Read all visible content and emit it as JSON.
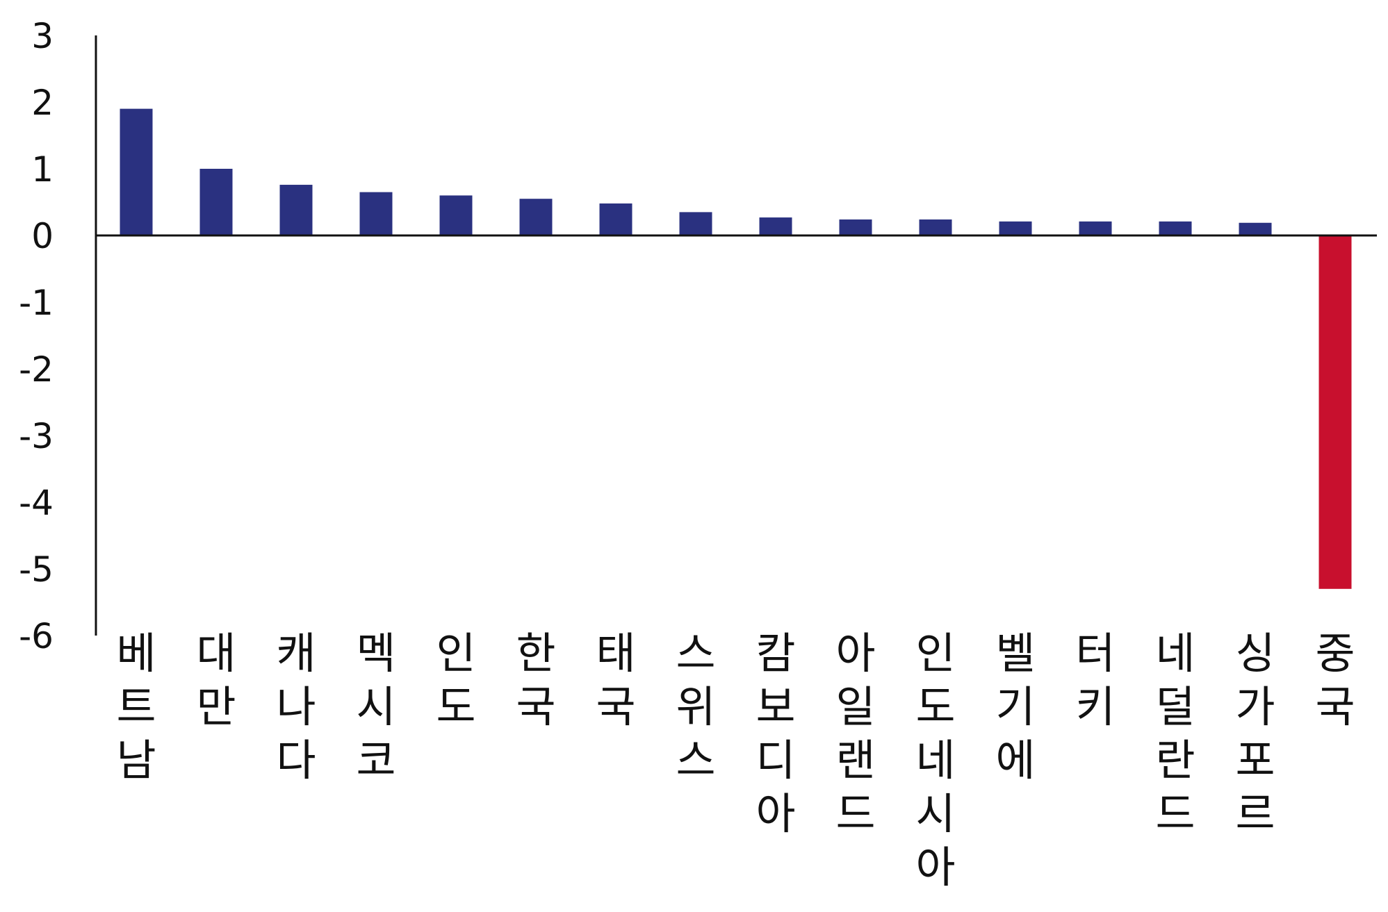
{
  "chart_data": {
    "type": "bar",
    "title": "",
    "xlabel": "",
    "ylabel": "",
    "ylim": [
      -6,
      3
    ],
    "yticks": [
      "3",
      "2",
      "1",
      "0",
      "-1",
      "-2",
      "-3",
      "-4",
      "-5",
      "-6"
    ],
    "grid": false,
    "categories": [
      "베트남",
      "대만",
      "캐나다",
      "멕시코",
      "인도",
      "한국",
      "태국",
      "스위스",
      "캄보디아",
      "아일랜드",
      "인도네시아",
      "벨기에",
      "터키",
      "네덜란드",
      "싱가포르",
      "중국"
    ],
    "values": [
      1.9,
      1.0,
      0.76,
      0.65,
      0.6,
      0.55,
      0.48,
      0.35,
      0.27,
      0.24,
      0.24,
      0.21,
      0.21,
      0.21,
      0.19,
      -5.3
    ],
    "colors": {
      "positive": "#2a3180",
      "negative": "#c8102e",
      "axis": "#111111"
    }
  }
}
